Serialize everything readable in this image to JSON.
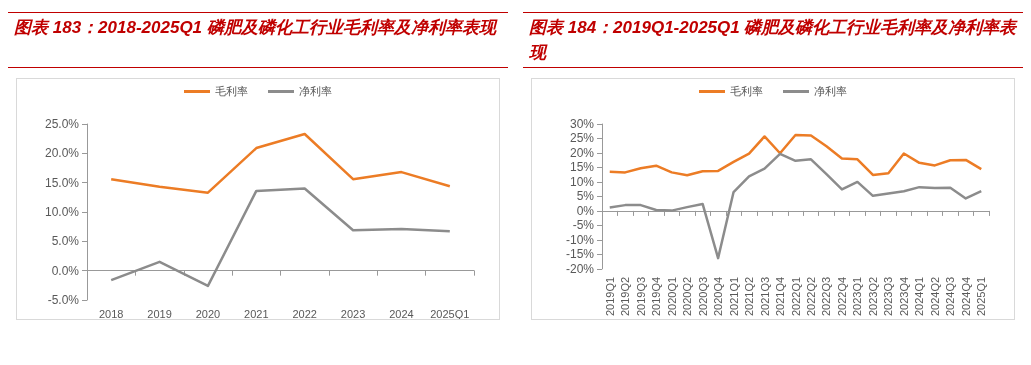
{
  "chart_data": [
    {
      "type": "line",
      "title": "图表 183：2018-2025Q1 磷肥及磷化工行业毛利率及净利率表现",
      "categories": [
        "2018",
        "2019",
        "2020",
        "2021",
        "2022",
        "2023",
        "2024",
        "2025Q1"
      ],
      "series": [
        {
          "name": "毛利率",
          "color": "#ec7c25",
          "values": [
            15.6,
            14.3,
            13.3,
            20.9,
            23.3,
            15.6,
            16.8,
            14.4
          ]
        },
        {
          "name": "净利率",
          "color": "#8c8c8c",
          "values": [
            -1.6,
            1.5,
            -2.6,
            13.6,
            14.0,
            6.9,
            7.1,
            6.7
          ]
        }
      ],
      "ylim": [
        -5,
        25
      ],
      "yticks": [
        {
          "value": -5,
          "label": "-5.0%"
        },
        {
          "value": 0,
          "label": "0.0%"
        },
        {
          "value": 5,
          "label": "5.0%"
        },
        {
          "value": 10,
          "label": "10.0%"
        },
        {
          "value": 15,
          "label": "15.0%"
        },
        {
          "value": 20,
          "label": "20.0%"
        },
        {
          "value": 25,
          "label": "25.0%"
        }
      ],
      "legend": "top",
      "marker": "none"
    },
    {
      "type": "line",
      "title": "图表 184：2019Q1-2025Q1 磷肥及磷化工行业毛利率及净利率表现",
      "categories": [
        "2019Q1",
        "2019Q2",
        "2019Q3",
        "2019Q4",
        "2020Q1",
        "2020Q2",
        "2020Q3",
        "2020Q4",
        "2021Q1",
        "2021Q2",
        "2021Q3",
        "2021Q4",
        "2022Q1",
        "2022Q2",
        "2022Q3",
        "2022Q4",
        "2023Q1",
        "2023Q2",
        "2023Q3",
        "2023Q4",
        "2024Q1",
        "2024Q2",
        "2024Q3",
        "2024Q4",
        "2025Q1"
      ],
      "series": [
        {
          "name": "毛利率",
          "color": "#ec7c25",
          "values": [
            13.5,
            13.3,
            14.7,
            15.6,
            13.3,
            12.3,
            13.7,
            13.8,
            16.9,
            19.8,
            25.7,
            19.9,
            26.2,
            26.0,
            22.3,
            18.1,
            17.8,
            12.4,
            13.0,
            19.8,
            16.6,
            15.7,
            17.5,
            17.6,
            14.4
          ]
        },
        {
          "name": "净利率",
          "color": "#8c8c8c",
          "values": [
            1.2,
            2.0,
            2.0,
            0.3,
            0.1,
            1.3,
            2.4,
            -16.3,
            6.5,
            11.9,
            14.6,
            19.7,
            17.3,
            17.8,
            12.7,
            7.4,
            10.0,
            5.2,
            6.0,
            6.8,
            8.2,
            7.9,
            8.0,
            4.3,
            6.8
          ]
        }
      ],
      "ylim": [
        -20,
        30
      ],
      "yticks": [
        {
          "value": -20,
          "label": "-20%"
        },
        {
          "value": -15,
          "label": "-15%"
        },
        {
          "value": -10,
          "label": "-10%"
        },
        {
          "value": -5,
          "label": "-5%"
        },
        {
          "value": 0,
          "label": "0%"
        },
        {
          "value": 5,
          "label": "5%"
        },
        {
          "value": 10,
          "label": "10%"
        },
        {
          "value": 15,
          "label": "15%"
        },
        {
          "value": 20,
          "label": "20%"
        },
        {
          "value": 25,
          "label": "25%"
        },
        {
          "value": 30,
          "label": "30%"
        }
      ],
      "legend": "top",
      "marker": "none"
    }
  ]
}
